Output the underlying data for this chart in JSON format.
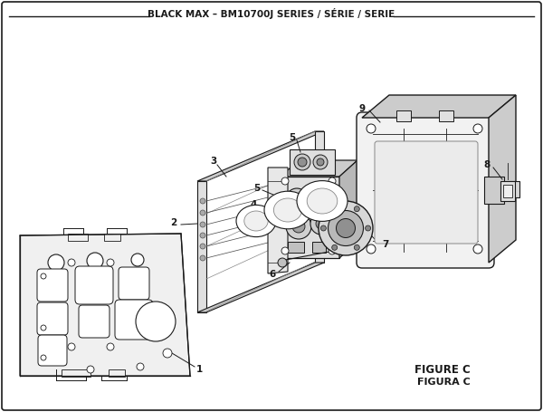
{
  "title": "BLACK MAX – BM10700J SERIES / SÉRIE / SERIE",
  "figure_label": "FIGURE C",
  "figura_label": "FIGURA C",
  "bg_color": "#ffffff",
  "line_color": "#1a1a1a",
  "light_gray": "#f0f0f0",
  "mid_gray": "#e0e0e0",
  "dark_gray": "#cccccc",
  "title_fontsize": 7.5,
  "label_fontsize": 7,
  "fig_width": 6.0,
  "fig_height": 4.55,
  "dpi": 100
}
